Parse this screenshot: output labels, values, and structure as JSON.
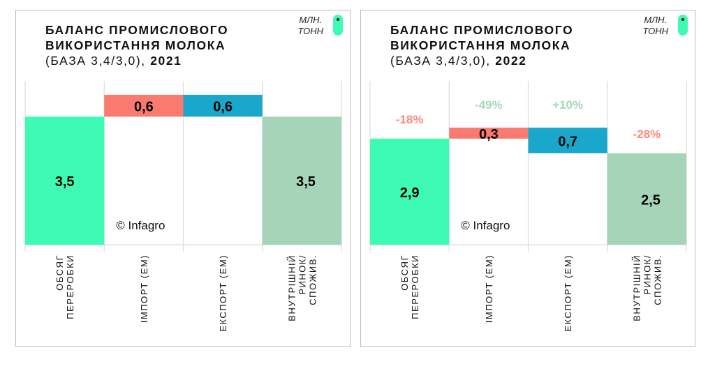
{
  "legend": {
    "unit_line1": "МЛН.",
    "unit_line2": "ТОНН"
  },
  "colors": {
    "processing": "#3dfbb5",
    "import": "#fb7a70",
    "export": "#1aa7cc",
    "domestic": "#a6d4b8",
    "neg": "#f98a80",
    "pos": "#a6d8b8"
  },
  "chart_data": [
    {
      "type": "waterfall",
      "title_line1": "БАЛАНС ПРОМИСЛОВОГО",
      "title_line2": "ВИКОРИСТАННЯ МОЛОКА",
      "subtitle": "(БАЗА 3,4/3,0), ",
      "year": "2021",
      "watermark": "© Infagro",
      "categories": [
        [
          "ОБСЯГ",
          "ПЕРЕРОБКИ"
        ],
        [
          "ІМПОРТ (ЕМ)"
        ],
        [
          "ЕКСПОРТ (ЕМ)"
        ],
        [
          "ВНУТРІШНІЙ",
          "РИНОК/",
          "СПОЖИВ."
        ]
      ],
      "values": [
        3.5,
        0.6,
        0.6,
        3.5
      ],
      "labels": [
        "3,5",
        "0,6",
        "0,6",
        "3,5"
      ],
      "changes": [
        null,
        null,
        null,
        null
      ],
      "ylim": [
        0,
        4.48
      ]
    },
    {
      "type": "waterfall",
      "title_line1": "БАЛАНС ПРОМИСЛОВОГО",
      "title_line2": "ВИКОРИСТАННЯ МОЛОКА",
      "subtitle": "(БАЗА 3,4/3,0), ",
      "year": "2022",
      "watermark": "© Infagro",
      "categories": [
        [
          "ОБСЯГ",
          "ПЕРЕРОБКИ"
        ],
        [
          "ІМПОРТ (ЕМ)"
        ],
        [
          "ЕКСПОРТ (ЕМ)"
        ],
        [
          "ВНУТРІШНІЙ",
          "РИНОК/",
          "СПОЖИВ."
        ]
      ],
      "values": [
        2.9,
        0.3,
        0.7,
        2.5
      ],
      "labels": [
        "2,9",
        "0,3",
        "0,7",
        "2,5"
      ],
      "changes": [
        "-18%",
        "-49%",
        "+10%",
        "-28%"
      ],
      "ylim": [
        0,
        4.48
      ]
    }
  ]
}
